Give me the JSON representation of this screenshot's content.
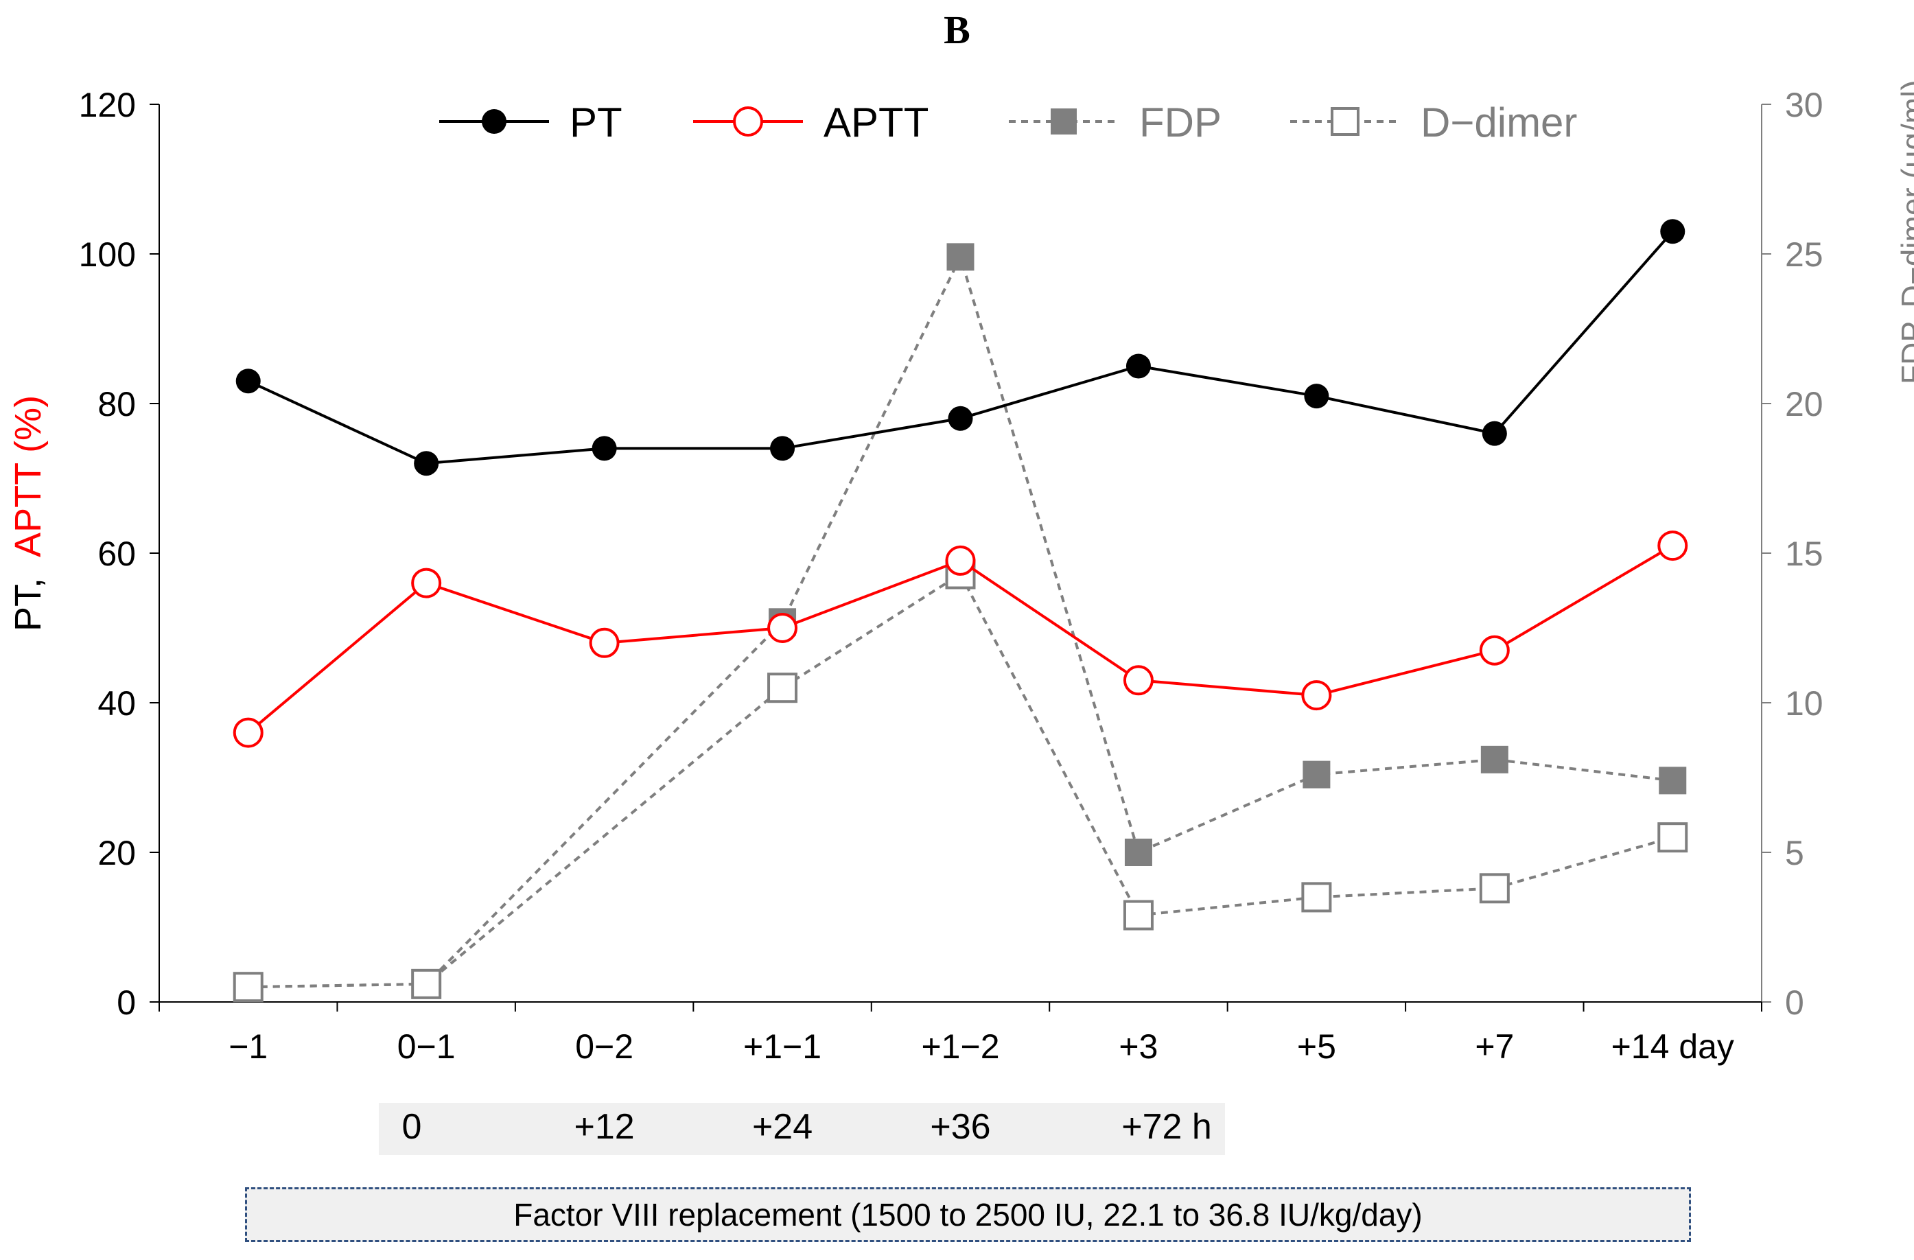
{
  "chart_data": {
    "type": "line",
    "title": "B",
    "categories": [
      "−1",
      "0−1",
      "0−2",
      "+1−1",
      "+1−2",
      "+3",
      "+5",
      "+7",
      "+14 day"
    ],
    "hours_row": [
      {
        "label": "0",
        "category_index": 1
      },
      {
        "label": "+12",
        "category_index": 2
      },
      {
        "label": "+24",
        "category_index": 3
      },
      {
        "label": "+36",
        "category_index": 4
      },
      {
        "label": "+72 h",
        "category_index": 5
      }
    ],
    "y_left": {
      "label_pt": "PT,",
      "label_aptt": "APTT (%)",
      "ylim": [
        0,
        120
      ],
      "ticks": [
        0,
        20,
        40,
        60,
        80,
        100,
        120
      ]
    },
    "y_right": {
      "label": "FDP, D−dimer (µg/ml)",
      "ylim": [
        0,
        30
      ],
      "ticks": [
        0,
        5,
        10,
        15,
        20,
        25,
        30
      ]
    },
    "series": [
      {
        "name": "PT",
        "axis": "left",
        "color": "#000000",
        "marker": "filled-circle",
        "line": "solid",
        "values": [
          83,
          72,
          74,
          74,
          78,
          85,
          81,
          76,
          103
        ]
      },
      {
        "name": "APTT",
        "axis": "left",
        "color": "#ff0000",
        "marker": "open-circle",
        "line": "solid",
        "values": [
          36,
          56,
          48,
          50,
          59,
          43,
          41,
          47,
          61
        ]
      },
      {
        "name": "FDP",
        "axis": "right",
        "color": "#7f7f7f",
        "marker": "filled-square",
        "line": "dashed",
        "values": [
          0.5,
          0.6,
          null,
          12.7,
          24.9,
          5.0,
          7.6,
          8.1,
          7.4
        ]
      },
      {
        "name": "D−dimer",
        "axis": "right",
        "color": "#7f7f7f",
        "marker": "open-square",
        "line": "dashed",
        "values": [
          0.5,
          0.6,
          null,
          10.5,
          14.3,
          2.9,
          3.5,
          3.8,
          5.5
        ]
      }
    ],
    "legend_position": "top"
  },
  "annotation": {
    "replacement": "Factor VIII replacement (1500 to 2500 IU, 22.1 to 36.8 IU/kg/day)"
  }
}
